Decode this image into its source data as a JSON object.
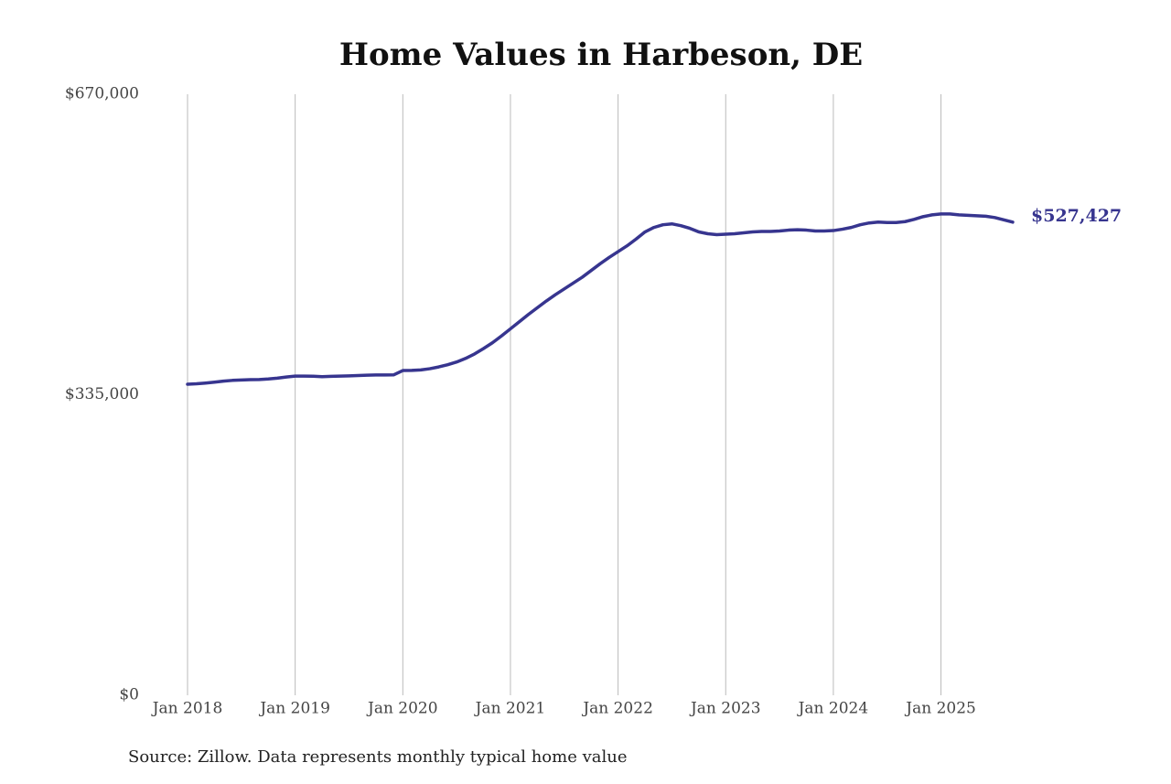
{
  "chart_data": {
    "type": "line",
    "title": "Home Values in Harbeson, DE",
    "source": "Source: Zillow. Data represents monthly typical home value",
    "x": [
      "2018-01",
      "2018-02",
      "2018-03",
      "2018-04",
      "2018-05",
      "2018-06",
      "2018-07",
      "2018-08",
      "2018-09",
      "2018-10",
      "2018-11",
      "2018-12",
      "2019-01",
      "2019-02",
      "2019-03",
      "2019-04",
      "2019-05",
      "2019-06",
      "2019-07",
      "2019-08",
      "2019-09",
      "2019-10",
      "2019-11",
      "2019-12",
      "2020-01",
      "2020-02",
      "2020-03",
      "2020-04",
      "2020-05",
      "2020-06",
      "2020-07",
      "2020-08",
      "2020-09",
      "2020-10",
      "2020-11",
      "2020-12",
      "2021-01",
      "2021-02",
      "2021-03",
      "2021-04",
      "2021-05",
      "2021-06",
      "2021-07",
      "2021-08",
      "2021-09",
      "2021-10",
      "2021-11",
      "2021-12",
      "2022-01",
      "2022-02",
      "2022-03",
      "2022-04",
      "2022-05",
      "2022-06",
      "2022-07",
      "2022-08",
      "2022-09",
      "2022-10",
      "2022-11",
      "2022-12",
      "2023-01",
      "2023-02",
      "2023-03",
      "2023-04",
      "2023-05",
      "2023-06",
      "2023-07",
      "2023-08",
      "2023-09",
      "2023-10",
      "2023-11",
      "2023-12",
      "2024-01",
      "2024-02",
      "2024-03",
      "2024-04",
      "2024-05",
      "2024-06",
      "2024-07",
      "2024-08",
      "2024-09",
      "2024-10",
      "2024-11",
      "2024-12",
      "2025-01",
      "2025-02",
      "2025-03",
      "2025-04",
      "2025-05",
      "2025-06",
      "2025-07",
      "2025-08",
      "2025-09"
    ],
    "series": [
      {
        "color": "#37358f",
        "values": [
          346700,
          347200,
          348000,
          349000,
          350200,
          351000,
          351500,
          351800,
          352000,
          352600,
          353500,
          354800,
          355800,
          355800,
          355600,
          355200,
          355500,
          355800,
          356000,
          356400,
          356800,
          357000,
          357000,
          357200,
          362000,
          362200,
          362700,
          364000,
          366000,
          368500,
          371500,
          375500,
          380500,
          386500,
          393000,
          400500,
          408500,
          416500,
          424500,
          432000,
          439500,
          446500,
          453000,
          459500,
          466000,
          473500,
          481000,
          488000,
          494500,
          501000,
          508500,
          516500,
          521500,
          524500,
          525500,
          523500,
          520500,
          516500,
          514500,
          513500,
          514000,
          514500,
          515500,
          516500,
          517000,
          517000,
          517500,
          518500,
          519000,
          518500,
          517500,
          517500,
          518000,
          519500,
          521500,
          524500,
          526500,
          527500,
          527000,
          527000,
          528000,
          530500,
          533500,
          535500,
          536500,
          536500,
          535500,
          535000,
          534500,
          534000,
          532500,
          530000,
          527427
        ],
        "value_labels": [
          null,
          null,
          null,
          null,
          null,
          null,
          null,
          null,
          null,
          null,
          null,
          null,
          null,
          null,
          null,
          null,
          null,
          null,
          null,
          null,
          null,
          null,
          null,
          null,
          null,
          null,
          null,
          null,
          null,
          null,
          null,
          null,
          null,
          null,
          null,
          null,
          null,
          null,
          null,
          null,
          null,
          null,
          null,
          null,
          null,
          null,
          null,
          null,
          null,
          null,
          null,
          null,
          null,
          null,
          null,
          null,
          null,
          null,
          null,
          null,
          null,
          null,
          null,
          null,
          null,
          null,
          null,
          null,
          null,
          null,
          null,
          null,
          null,
          null,
          null,
          null,
          null,
          null,
          null,
          null,
          null,
          null,
          null,
          null,
          null,
          null,
          null,
          null,
          null,
          null,
          null,
          null,
          "$527,427"
        ]
      }
    ],
    "xlim": [
      "2018-01",
      "2025-09"
    ],
    "xticks": [
      {
        "value": "2018-01",
        "label": "Jan 2018"
      },
      {
        "value": "2019-01",
        "label": "Jan 2019"
      },
      {
        "value": "2020-01",
        "label": "Jan 2020"
      },
      {
        "value": "2021-01",
        "label": "Jan 2021"
      },
      {
        "value": "2022-01",
        "label": "Jan 2022"
      },
      {
        "value": "2023-01",
        "label": "Jan 2023"
      },
      {
        "value": "2024-01",
        "label": "Jan 2024"
      },
      {
        "value": "2025-01",
        "label": "Jan 2025"
      }
    ],
    "ylim": [
      0,
      670000
    ],
    "yticks": [
      {
        "value": 0,
        "label": "$0"
      },
      {
        "value": 335000,
        "label": "$335,000"
      },
      {
        "value": 670000,
        "label": "$670,000"
      }
    ],
    "grid": "x"
  }
}
